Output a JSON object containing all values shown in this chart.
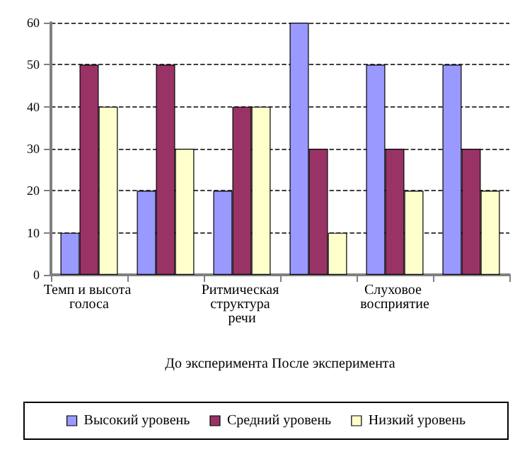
{
  "chart_data": {
    "type": "bar",
    "xlabel": "До эксперимента После эксперимента",
    "categories": [
      "Темп и высота голоса",
      null,
      "Ритмическая структура речи",
      null,
      "Слуховое восприятие",
      null
    ],
    "series": [
      {
        "name": "Высокий уровень",
        "color": "#9999ff",
        "values": [
          10,
          20,
          20,
          60,
          50,
          50
        ]
      },
      {
        "name": "Средний уровень",
        "color": "#993366",
        "values": [
          50,
          50,
          40,
          30,
          30,
          30
        ]
      },
      {
        "name": "Низкий уровень",
        "color": "#ffffcc",
        "values": [
          40,
          30,
          40,
          10,
          20,
          20
        ]
      }
    ],
    "ylim": [
      0,
      60
    ],
    "yticks": [
      0,
      10,
      20,
      30,
      40,
      50,
      60
    ],
    "grid": "y",
    "legend": "bottom"
  }
}
